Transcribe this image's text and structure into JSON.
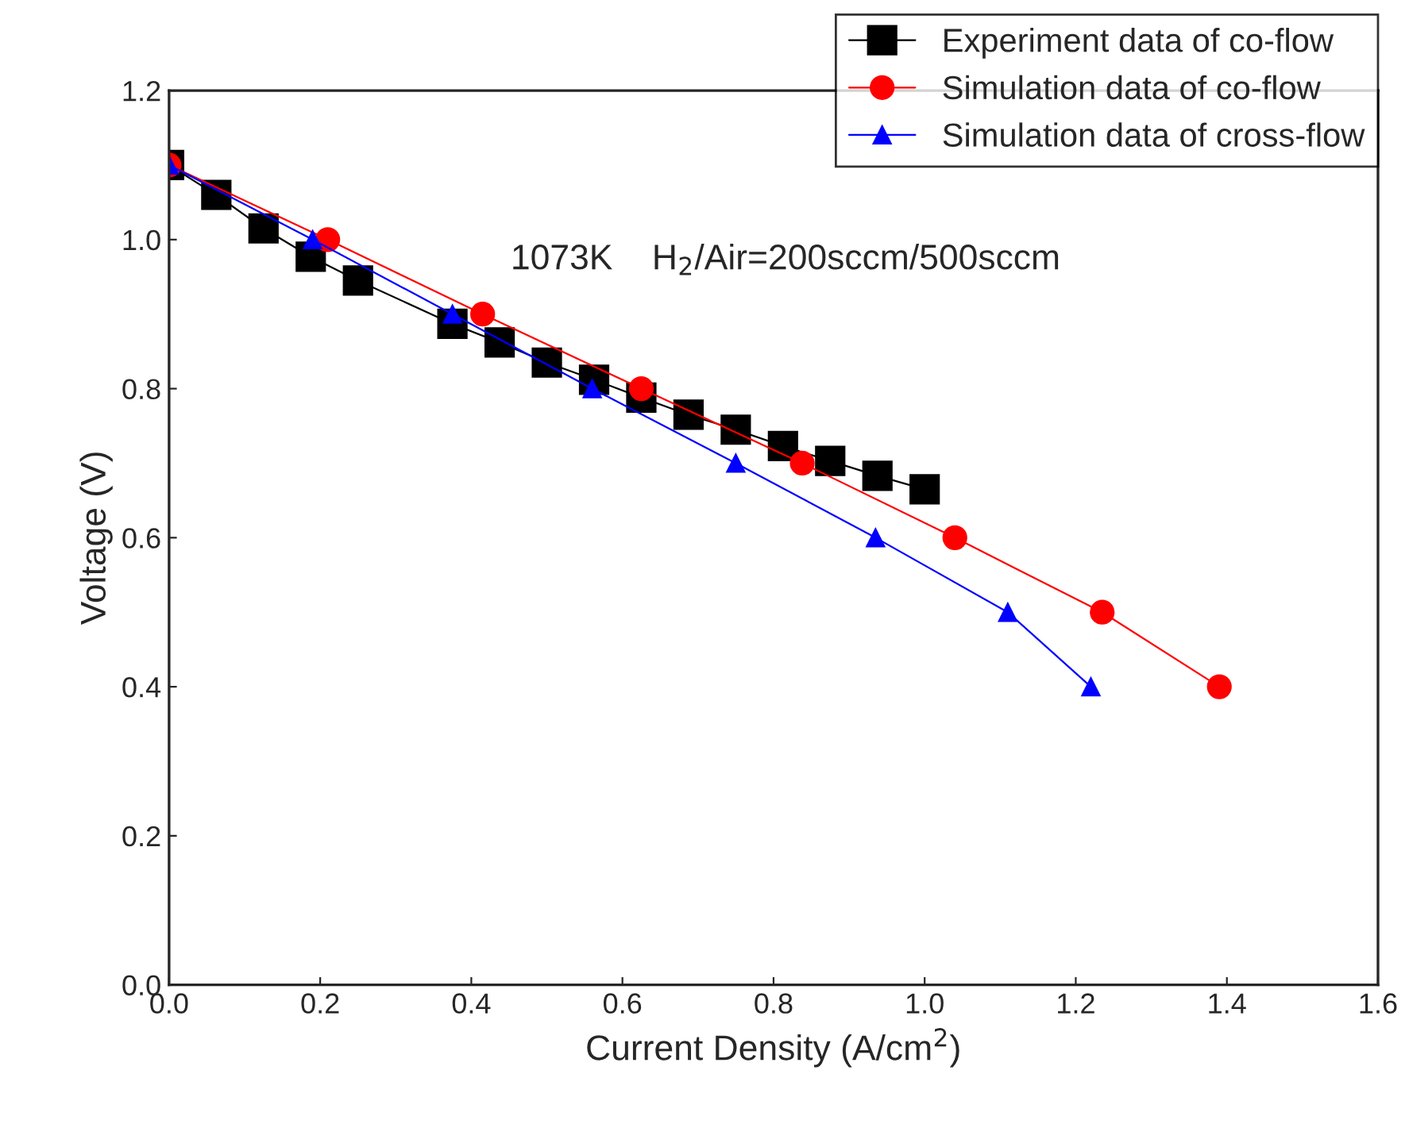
{
  "chart_data": {
    "type": "line",
    "xlabel": "Current Density (A/cm$^{2}$)",
    "ylabel": "Voltage (V)",
    "xlim": [
      0,
      1.6
    ],
    "ylim": [
      0,
      1.2
    ],
    "xticks": [
      {
        "value": 0,
        "label": "0.0"
      },
      {
        "value": 0.2,
        "label": "0.2"
      },
      {
        "value": 0.4,
        "label": "0.4"
      },
      {
        "value": 0.6,
        "label": "0.6"
      },
      {
        "value": 0.8,
        "label": "0.8"
      },
      {
        "value": 1.0,
        "label": "1.0"
      },
      {
        "value": 1.2,
        "label": "1.2"
      },
      {
        "value": 1.4,
        "label": "1.4"
      },
      {
        "value": 1.6,
        "label": "1.6"
      }
    ],
    "yticks": [
      {
        "value": 0,
        "label": "0.0"
      },
      {
        "value": 0.2,
        "label": "0.2"
      },
      {
        "value": 0.4,
        "label": "0.4"
      },
      {
        "value": 0.6,
        "label": "0.6"
      },
      {
        "value": 0.8,
        "label": "0.8"
      },
      {
        "value": 1.0,
        "label": "1.0"
      },
      {
        "value": 1.2,
        "label": "1.2"
      }
    ],
    "grid": false,
    "legend": "top right",
    "annotations": [
      {
        "text": "1073K    H$_{2}$/Air=200sccm/500sccm"
      }
    ],
    "series": [
      {
        "name": "Experiment data of co-flow",
        "color": "#000000",
        "marker": "square",
        "x": [
          0,
          0.0625,
          0.125,
          0.1875,
          0.25,
          0.375,
          0.4375,
          0.5,
          0.5625,
          0.625,
          0.6875,
          0.75,
          0.8125,
          0.875,
          0.9375,
          1.0
        ],
        "values": [
          1.1,
          1.06,
          1.015,
          0.977,
          0.945,
          0.887,
          0.862,
          0.835,
          0.812,
          0.788,
          0.765,
          0.745,
          0.723,
          0.703,
          0.683,
          0.665
        ]
      },
      {
        "name": "Simulation data of co-flow",
        "color": "#ff0000",
        "marker": "circle",
        "x": [
          0,
          0.21,
          0.415,
          0.625,
          0.838,
          1.04,
          1.235,
          1.39
        ],
        "values": [
          1.1,
          1.0,
          0.9,
          0.8,
          0.7,
          0.6,
          0.5,
          0.4
        ]
      },
      {
        "name": "Simulation data of cross-flow",
        "color": "#0000ff",
        "marker": "triangle",
        "x": [
          0,
          0.19,
          0.375,
          0.56,
          0.75,
          0.935,
          1.11,
          1.22
        ],
        "values": [
          1.1,
          1.0,
          0.9,
          0.8,
          0.7,
          0.6,
          0.5,
          0.4
        ]
      }
    ]
  }
}
